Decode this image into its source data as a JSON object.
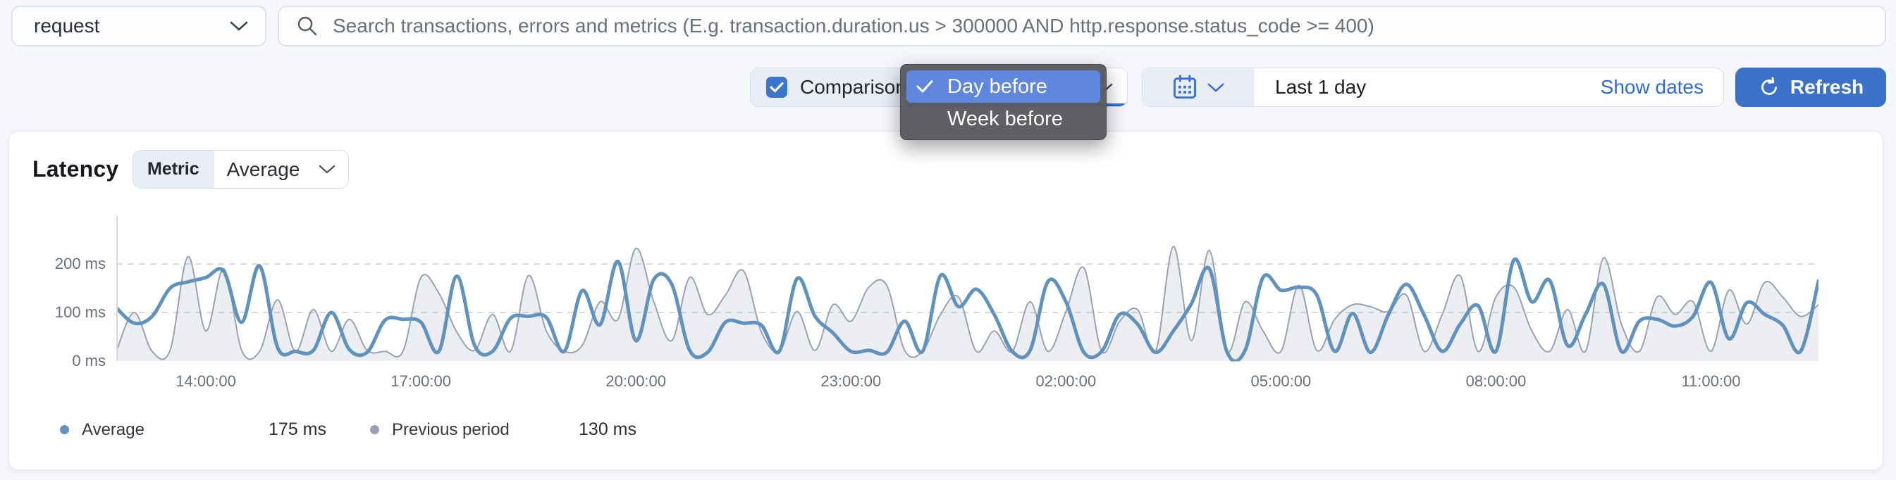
{
  "transaction_type_select": {
    "value": "request"
  },
  "search": {
    "placeholder": "Search transactions, errors and metrics (E.g. transaction.duration.us > 300000 AND http.response.status_code >= 400)"
  },
  "comparison": {
    "label": "Comparison",
    "checked": true,
    "selected": "Day before",
    "options": [
      "Day before",
      "Week before"
    ]
  },
  "datepicker": {
    "value": "Last 1 day",
    "show_dates_label": "Show dates"
  },
  "refresh_button": {
    "label": "Refresh"
  },
  "panel": {
    "title": "Latency",
    "metric_label": "Metric",
    "metric_value": "Average"
  },
  "legend": [
    {
      "label": "Average",
      "value": "175 ms",
      "color": "#6092C0"
    },
    {
      "label": "Previous period",
      "value": "130 ms",
      "color": "#98A2B3"
    }
  ],
  "colors": {
    "primary_button": "#3a72c9",
    "link_blue": "#2e6cd0",
    "icon_blue": "#3a71d6",
    "checkbox_blue": "#3b76cc",
    "popup_highlight": "#5f87e0",
    "series_current": "#6092C0",
    "series_previous": "#98A2B3"
  },
  "chart_data": {
    "type": "line",
    "title": "Latency",
    "ylabel": "ms",
    "grid": "horizontal-dashed",
    "legend_position": "bottom",
    "ylim": [
      0,
      297
    ],
    "y_ticks": [
      {
        "value": 0,
        "label": "0 ms"
      },
      {
        "value": 100,
        "label": "100 ms"
      },
      {
        "value": 200,
        "label": "200 ms"
      }
    ],
    "x_start": "12:45:00",
    "x_step_minutes": 15,
    "x_tick_labels": [
      "14:00:00",
      "17:00:00",
      "20:00:00",
      "23:00:00",
      "02:00:00",
      "05:00:00",
      "08:00:00",
      "11:00:00"
    ],
    "x_tick_indices": [
      5,
      17,
      29,
      41,
      53,
      65,
      77,
      89
    ],
    "series": [
      {
        "name": "Average",
        "style": "line",
        "color": "#6092C0",
        "stroke_width": 5,
        "values": [
          110,
          78,
          92,
          150,
          163,
          172,
          185,
          80,
          196,
          28,
          20,
          22,
          100,
          24,
          18,
          84,
          86,
          80,
          20,
          175,
          32,
          20,
          88,
          92,
          90,
          20,
          145,
          75,
          205,
          42,
          168,
          158,
          22,
          18,
          80,
          78,
          74,
          20,
          170,
          92,
          58,
          20,
          22,
          18,
          82,
          20,
          176,
          112,
          148,
          96,
          20,
          22,
          164,
          122,
          18,
          20,
          96,
          76,
          18,
          62,
          118,
          190,
          18,
          22,
          172,
          146,
          152,
          136,
          20,
          98,
          18,
          96,
          158,
          94,
          20,
          76,
          114,
          20,
          208,
          122,
          166,
          32,
          96,
          158,
          20,
          82,
          86,
          72,
          92,
          162,
          46,
          120,
          96,
          74,
          20,
          165
        ]
      },
      {
        "name": "Previous period",
        "style": "area",
        "color": "#98A2B3",
        "fill": "rgba(152,162,179,0.18)",
        "stroke_width": 2,
        "values": [
          20,
          100,
          20,
          22,
          215,
          62,
          190,
          22,
          20,
          126,
          20,
          106,
          20,
          86,
          22,
          20,
          20,
          172,
          140,
          60,
          22,
          96,
          20,
          176,
          62,
          20,
          32,
          122,
          86,
          232,
          122,
          42,
          172,
          96,
          136,
          186,
          60,
          20,
          102,
          22,
          116,
          82,
          152,
          156,
          22,
          20,
          96,
          132,
          20,
          62,
          20,
          122,
          20,
          102,
          192,
          20,
          82,
          106,
          20,
          236,
          42,
          228,
          20,
          122,
          62,
          20,
          156,
          22,
          86,
          116,
          112,
          102,
          136,
          20,
          96,
          176,
          20,
          132,
          152,
          62,
          20,
          106,
          20,
          212,
          76,
          20,
          132,
          96,
          122,
          20,
          146,
          76,
          162,
          132,
          92,
          116
        ]
      }
    ]
  }
}
